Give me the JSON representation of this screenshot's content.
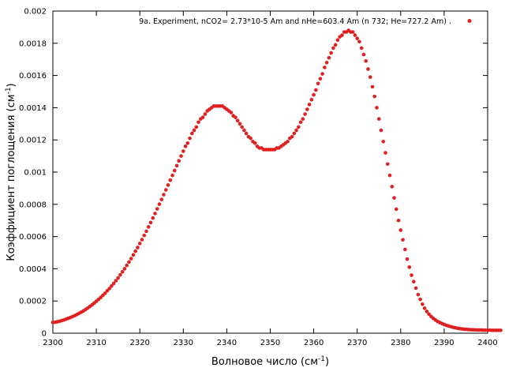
{
  "chart_data": {
    "type": "scatter",
    "xlabel": "Волновое число (см",
    "xlabel_sup": "-1",
    "xlabel_end": ")",
    "ylabel": "Коэффициент поглощения (см",
    "ylabel_sup": "-1",
    "ylabel_end": ")",
    "xlim": [
      2300,
      2400
    ],
    "ylim": [
      0,
      0.002
    ],
    "x_ticks": [
      2300,
      2310,
      2320,
      2330,
      2340,
      2350,
      2360,
      2370,
      2380,
      2390,
      2400
    ],
    "x_tick_labels": [
      "2300",
      "2310",
      "2320",
      "2330",
      "2340",
      "2350",
      "2360",
      "2370",
      "2380",
      "2390",
      "2400"
    ],
    "y_ticks": [
      0,
      0.0002,
      0.0004,
      0.0006,
      0.0008,
      0.001,
      0.0012,
      0.0014,
      0.0016,
      0.0018,
      0.002
    ],
    "y_tick_labels": [
      "0",
      "0.0002",
      "0.0004",
      "0.0006",
      "0.0008",
      "0.001",
      "0.0012",
      "0.0014",
      "0.0016",
      "0.0018",
      "0.002"
    ],
    "grid": false,
    "legend_position": "top-right",
    "series": [
      {
        "name": "9a. Experiment, nCO2= 2.73*10-5 Am and nHe=603.4 Am (n  732; He=727.2 Am) .",
        "color": "#e02020",
        "marker": "circle",
        "x_start": 2300,
        "x_step": 0.5,
        "y": [
          6.7e-05,
          6.8e-05,
          7.1e-05,
          7.4e-05,
          7.8e-05,
          8.2e-05,
          8.7e-05,
          9.2e-05,
          9.7e-05,
          0.000103,
          0.000109,
          0.000116,
          0.000123,
          0.00013,
          0.000138,
          0.000147,
          0.000156,
          0.000166,
          0.000176,
          0.000187,
          0.000198,
          0.00021,
          0.000222,
          0.000235,
          0.000248,
          0.000263,
          0.000277,
          0.000293,
          0.000309,
          0.000326,
          0.000343,
          0.000362,
          0.000381,
          0.0004,
          0.000421,
          0.000442,
          0.000463,
          0.000486,
          0.000509,
          0.000532,
          0.000557,
          0.000581,
          0.000607,
          0.000633,
          0.00066,
          0.000687,
          0.000715,
          0.000743,
          0.000772,
          0.000801,
          0.00083,
          0.00086,
          0.00089,
          0.00092,
          0.00095,
          0.00098,
          0.00101,
          0.00104,
          0.00107,
          0.0011,
          0.00113,
          0.00116,
          0.00118,
          0.00121,
          0.00124,
          0.00126,
          0.00128,
          0.00131,
          0.00133,
          0.00134,
          0.00136,
          0.00138,
          0.00139,
          0.0014,
          0.00141,
          0.00141,
          0.00141,
          0.00141,
          0.00141,
          0.0014,
          0.00139,
          0.00138,
          0.00137,
          0.00135,
          0.00134,
          0.00132,
          0.0013,
          0.00128,
          0.00126,
          0.00124,
          0.00122,
          0.00121,
          0.00119,
          0.00118,
          0.00116,
          0.00115,
          0.00115,
          0.00114,
          0.00114,
          0.00114,
          0.00114,
          0.00114,
          0.00114,
          0.00115,
          0.00115,
          0.00116,
          0.00117,
          0.00118,
          0.00119,
          0.00121,
          0.00122,
          0.00124,
          0.00126,
          0.00128,
          0.00131,
          0.00133,
          0.00136,
          0.00139,
          0.00142,
          0.00145,
          0.00148,
          0.00151,
          0.00155,
          0.00158,
          0.00161,
          0.00165,
          0.00168,
          0.00171,
          0.00174,
          0.00177,
          0.00179,
          0.00182,
          0.00184,
          0.00185,
          0.00187,
          0.00187,
          0.00188,
          0.00187,
          0.00187,
          0.00185,
          0.00183,
          0.00181,
          0.00177,
          0.00173,
          0.00169,
          0.00164,
          0.00159,
          0.00153,
          0.00147,
          0.0014,
          0.00133,
          0.00126,
          0.00119,
          0.00112,
          0.00105,
          0.00098,
          0.00091,
          0.00084,
          0.00077,
          0.0007,
          0.00064,
          0.00058,
          0.00052,
          0.00046,
          0.00041,
          0.00036,
          0.00032,
          0.00028,
          0.00024,
          0.00021,
          0.00018,
          0.000155,
          0.000135,
          0.000118,
          0.000104,
          9.2e-05,
          8.2e-05,
          7.3e-05,
          6.6e-05,
          6e-05,
          5.4e-05,
          4.9e-05,
          4.5e-05,
          4.1e-05,
          3.7e-05,
          3.4e-05,
          3.1e-05,
          2.9e-05,
          2.7e-05,
          2.5e-05,
          2.4e-05,
          2.3e-05,
          2.2e-05,
          2.1e-05,
          2.1e-05,
          2e-05,
          2e-05,
          2e-05,
          1.9e-05,
          1.9e-05,
          1.9e-05,
          1.9e-05,
          1.8e-05,
          1.8e-05,
          1.8e-05,
          1.8e-05,
          1.8e-05
        ]
      }
    ]
  }
}
